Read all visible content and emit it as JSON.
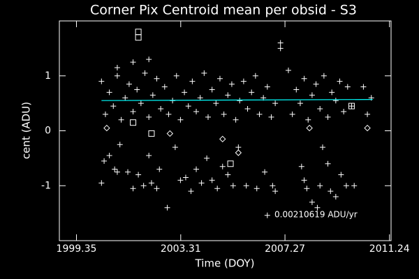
{
  "chart_data": {
    "type": "scatter",
    "title": "Corner Pix Centroid mean per obsid - S3",
    "x_label": "Time (DOY)",
    "y_label": "cent (ADU)",
    "annotation": "0.00210619 ADU/yr",
    "annotation_color": "#00ffff",
    "xlim": [
      1998.7,
      2011.3
    ],
    "xticks": [
      1999.35,
      2003.31,
      2007.27,
      2011.24
    ],
    "ylim": [
      -2,
      2
    ],
    "yticks": [
      -1,
      0,
      1
    ],
    "series": [
      {
        "marker": "plus",
        "color": "#ffffff",
        "x": [
          2000.3,
          2000.45,
          2000.6,
          2000.75,
          2000.9,
          2001.05,
          2001.2,
          2001.35,
          2001.5,
          2001.65,
          2001.8,
          2001.95,
          2002.1,
          2002.25,
          2002.4,
          2002.55,
          2002.7,
          2002.85,
          2003.0,
          2003.15,
          2003.3,
          2003.45,
          2003.6,
          2003.75,
          2003.9,
          2004.05,
          2004.2,
          2004.35,
          2004.5,
          2004.65,
          2004.8,
          2004.95,
          2005.1,
          2005.25,
          2005.4,
          2005.55,
          2005.7,
          2005.85,
          2006.0,
          2006.15,
          2006.3,
          2006.45,
          2006.6,
          2006.75,
          2006.9,
          2007.4,
          2007.55,
          2007.7,
          2007.85,
          2008.0,
          2008.15,
          2008.3,
          2008.45,
          2008.6,
          2008.75,
          2008.9,
          2009.05,
          2009.2,
          2009.35,
          2009.5,
          2009.65,
          2009.8,
          2010.25,
          2010.4,
          2010.55
        ],
        "values": [
          0.9,
          0.3,
          0.7,
          0.45,
          1.0,
          0.2,
          0.6,
          0.85,
          0.35,
          0.75,
          0.5,
          1.05,
          0.25,
          0.65,
          0.95,
          0.4,
          0.8,
          0.3,
          0.55,
          1.0,
          0.2,
          0.7,
          0.45,
          0.9,
          0.35,
          0.6,
          1.05,
          0.25,
          0.75,
          0.5,
          0.95,
          0.3,
          0.65,
          0.85,
          0.2,
          0.55,
          0.9,
          0.4,
          0.7,
          1.0,
          0.3,
          0.6,
          0.8,
          0.25,
          0.5,
          1.1,
          0.3,
          0.75,
          0.5,
          0.95,
          0.2,
          0.65,
          0.85,
          0.4,
          1.0,
          0.25,
          0.7,
          0.55,
          0.9,
          0.35,
          0.8,
          0.45,
          0.8,
          0.3,
          0.6
        ]
      },
      {
        "marker": "plus",
        "color": "#ffffff",
        "x": [
          2000.3,
          2000.4,
          2000.6,
          2000.8,
          2000.9,
          2001.0,
          2001.3,
          2001.5,
          2001.7,
          2001.9,
          2002.1,
          2002.2,
          2002.4,
          2002.5,
          2002.8,
          2003.1,
          2003.3,
          2003.5,
          2003.7,
          2003.9,
          2004.1,
          2004.3,
          2004.5,
          2004.7,
          2004.9,
          2005.1,
          2005.3,
          2005.5,
          2005.8,
          2006.2,
          2006.5,
          2006.6,
          2006.8,
          2006.9,
          2007.1,
          2007.1,
          2007.9,
          2008.0,
          2008.1,
          2008.3,
          2008.5,
          2008.6,
          2008.7,
          2008.9,
          2009.0,
          2009.2,
          2009.4,
          2009.6,
          2009.9,
          2001.5,
          2002.1,
          2000.9
        ],
        "values": [
          -0.95,
          -0.55,
          -0.45,
          -0.7,
          -0.75,
          -0.25,
          -0.75,
          -1.05,
          -0.8,
          -1.0,
          -0.45,
          -0.95,
          -1.05,
          -0.7,
          -1.4,
          -0.3,
          -0.9,
          -0.85,
          -1.1,
          -0.7,
          -0.95,
          -0.5,
          -0.9,
          -1.05,
          -0.65,
          -0.8,
          -1.0,
          -0.3,
          -1.0,
          -1.05,
          -0.75,
          -1.54,
          -1.0,
          -1.1,
          1.6,
          1.5,
          -0.65,
          -0.9,
          -1.05,
          -1.3,
          -1.4,
          -1.0,
          -0.3,
          -0.6,
          -1.1,
          -1.2,
          -0.8,
          -1.0,
          -1.0,
          1.25,
          1.3,
          1.15
        ]
      },
      {
        "marker": "square",
        "color": "#ffffff",
        "x": [
          2001.7,
          2001.7,
          2002.2,
          2005.2,
          2001.5,
          2009.8
        ],
        "values": [
          1.8,
          1.7,
          -0.05,
          -0.6,
          0.15,
          0.45
        ]
      },
      {
        "marker": "diamond",
        "color": "#ffffff",
        "x": [
          2000.5,
          2004.9,
          2005.5,
          2010.4,
          2008.2,
          2002.9
        ],
        "values": [
          0.05,
          -0.15,
          -0.4,
          0.05,
          0.05,
          -0.05
        ]
      },
      {
        "marker": "line",
        "color": "#00ffff",
        "x": [
          2000.3,
          2010.6
        ],
        "values": [
          0.55,
          0.57
        ]
      }
    ]
  }
}
